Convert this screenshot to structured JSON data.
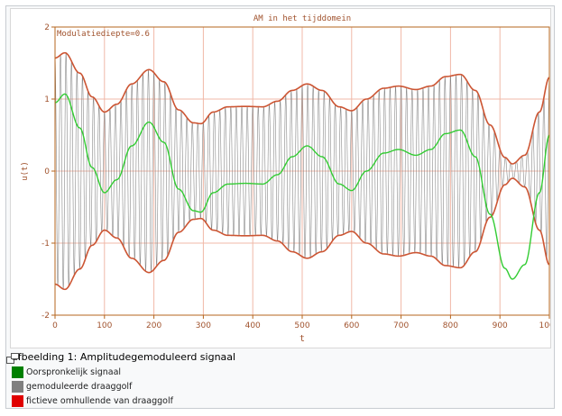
{
  "chart_data": {
    "type": "line",
    "title": "AM in het tijddomein",
    "xlabel": "t",
    "ylabel": "u(t)",
    "xlim": [
      0,
      1000
    ],
    "ylim": [
      -2,
      2
    ],
    "xticks": [
      0,
      100,
      200,
      300,
      400,
      500,
      600,
      700,
      800,
      900,
      1000
    ],
    "yticks": [
      -2,
      -1,
      0,
      1,
      2
    ],
    "grid": true,
    "annotation": "Modulatiediepte=0.6",
    "series": [
      {
        "name": "Oorspronkelijk signaal",
        "color": "#33cc33",
        "x": [
          0,
          20,
          50,
          75,
          100,
          125,
          155,
          190,
          220,
          250,
          280,
          295,
          320,
          350,
          385,
          420,
          450,
          480,
          510,
          540,
          575,
          600,
          630,
          665,
          695,
          730,
          760,
          790,
          820,
          850,
          880,
          910,
          925,
          950,
          980,
          1000
        ],
        "y": [
          0.95,
          1.07,
          0.6,
          0.05,
          -0.3,
          -0.12,
          0.35,
          0.68,
          0.4,
          -0.25,
          -0.55,
          -0.57,
          -0.3,
          -0.18,
          -0.17,
          -0.18,
          -0.05,
          0.2,
          0.35,
          0.2,
          -0.18,
          -0.27,
          0.0,
          0.25,
          0.3,
          0.22,
          0.3,
          0.52,
          0.57,
          0.2,
          -0.6,
          -1.35,
          -1.5,
          -1.3,
          -0.3,
          0.5
        ]
      },
      {
        "name": "gemoduleerde draaggolf",
        "color": "#888888",
        "carrier_periods": 90
      },
      {
        "name": "fictieve omhullende van draaggolf",
        "color": "#cc5533",
        "derived_from": "Oorspronkelijk signaal",
        "formula": "±(1 + 0.6 · m(t))"
      }
    ]
  },
  "caption": "afbeelding 1: Amplitudegemoduleerd signaal",
  "legend": [
    {
      "label": "Oorspronkelijk signaal",
      "color": "#008000"
    },
    {
      "label": "gemoduleerde draaggolf",
      "color": "#808080"
    },
    {
      "label": "fictieve omhullende van draaggolf",
      "color": "#e00000"
    }
  ],
  "enlarge_icon": "enlarge-icon"
}
